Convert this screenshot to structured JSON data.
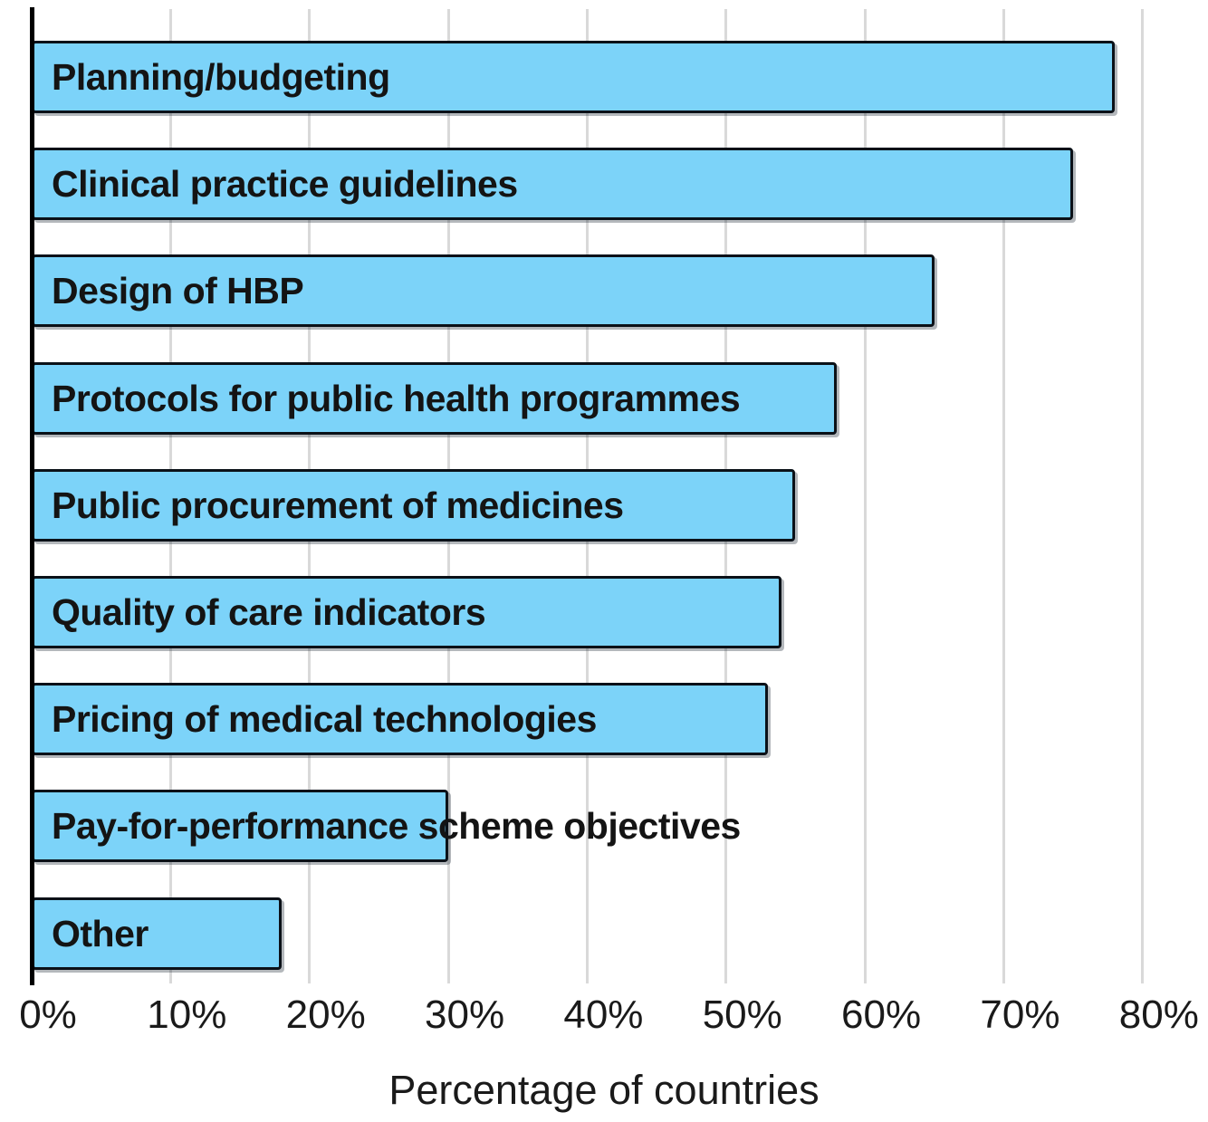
{
  "chart_data": {
    "type": "bar",
    "orientation": "horizontal",
    "title": "",
    "xlabel": "Percentage of countries",
    "ylabel": "",
    "categories": [
      "Planning/budgeting",
      "Clinical practice guidelines",
      "Design of HBP",
      "Protocols for public health programmes",
      "Public procurement of medicines",
      "Quality of care indicators",
      "Pricing of medical technologies",
      "Pay-for-performance scheme objectives",
      "Other"
    ],
    "values": [
      78,
      75,
      65,
      58,
      55,
      54,
      53,
      30,
      18
    ],
    "unit": "%",
    "xlim": [
      0,
      80
    ],
    "xtick_values": [
      0,
      10,
      20,
      30,
      40,
      50,
      60,
      70,
      80
    ],
    "xticks": [
      "0%",
      "10%",
      "20%",
      "30%",
      "40%",
      "50%",
      "60%",
      "70%",
      "80%"
    ],
    "grid": "vertical-gridlines-on",
    "legend": "none",
    "colors": {
      "bar_fill": "#7cd3f9",
      "bar_border": "#0b1118",
      "gridline": "#d9d9d9",
      "axis": "#000000",
      "text": "#1a1a1a"
    }
  }
}
